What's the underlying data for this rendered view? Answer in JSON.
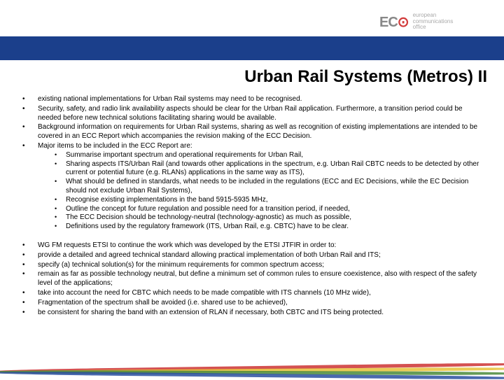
{
  "logo": {
    "mark": "EC",
    "tag1": "european",
    "tag2": "communications",
    "tag3": "office"
  },
  "title": "Urban Rail Systems (Metros) II",
  "block1": {
    "b1": "existing national implementations for Urban Rail systems may need to be recognised.",
    "b2": "Security, safety, and radio link availability aspects should be clear for the Urban Rail application. Furthermore, a transition period could be needed before new technical solutions facilitating sharing would be available.",
    "b3": "Background information on requirements for Urban Rail systems, sharing as well as recognition of existing implementations are intended to be covered in an ECC Report which accompanies the revision making of the ECC Decision.",
    "b4": "Major items to be included in the ECC Report are:",
    "sub": {
      "s1": "Summarise important spectrum and operational requirements for Urban Rail,",
      "s2": "Sharing aspects ITS/Urban Rail (and towards other applications in the spectrum, e.g. Urban Rail CBTC needs to be detected by other current or potential future (e.g. RLANs) applications in the same way as ITS),",
      "s3": "What should be defined in standards, what needs to be included in the regulations (ECC and EC Decisions, while the EC Decision should not exclude Urban Rail Systems),",
      "s4": "Recognise existing implementations in the band 5915-5935 MHz,",
      "s5": "Outline the concept for future regulation and possible need for a transition period, if needed,",
      "s6": "The ECC Decision should be technology-neutral (technology-agnostic) as much as possible,",
      "s7": "Definitions used by the regulatory framework (ITS, Urban Rail, e.g. CBTC) have to be clear."
    }
  },
  "block2": {
    "c1": "WG FM requests ETSI to continue the work which was developed by the ETSI JTFIR in order to:",
    "c2": "provide a detailed and agreed technical standard allowing practical implementation of both Urban Rail and ITS;",
    "c3": "specify (a) technical solution(s) for the minimum requirements for common spectrum access;",
    "c4": "remain as far as possible technology neutral, but define a minimum set of common rules to ensure coexistence, also with respect of the safety level of the applications;",
    "c5": "take into account the need for CBTC which needs to be made compatible with ITS channels (10 MHz wide),",
    "c6": "Fragmentation of the spectrum shall be avoided (i.e. shared use to be achieved),",
    "c7": "be consistent for sharing the band with an extension of RLAN if necessary, both CBTC and ITS being protected."
  },
  "colors": {
    "blue_band": "#1b3f8b",
    "text": "#000000",
    "background": "#ffffff"
  }
}
